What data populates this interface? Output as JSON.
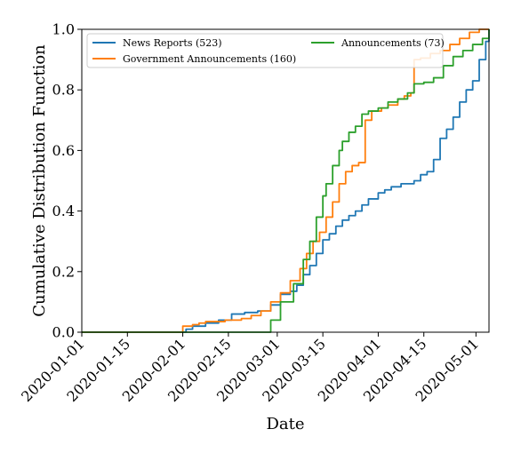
{
  "chart_data": {
    "type": "line",
    "title": "",
    "xlabel": "Date",
    "ylabel": "Cumulative Distribution Function",
    "xlim": [
      "2020-01-01",
      "2020-05-05"
    ],
    "ylim": [
      0,
      1.0
    ],
    "x_ticks": [
      "2020-01-01",
      "2020-01-15",
      "2020-02-01",
      "2020-02-15",
      "2020-03-01",
      "2020-03-15",
      "2020-04-01",
      "2020-04-15",
      "2020-05-01"
    ],
    "y_ticks": [
      "0.0",
      "0.2",
      "0.4",
      "0.6",
      "0.8",
      "1.0"
    ],
    "grid": false,
    "legend_position": "top",
    "series": [
      {
        "name": "News Reports (523)",
        "color": "#1f77b4",
        "x": [
          "2020-01-01",
          "2020-01-27",
          "2020-02-02",
          "2020-02-04",
          "2020-02-08",
          "2020-02-12",
          "2020-02-16",
          "2020-02-20",
          "2020-02-24",
          "2020-02-28",
          "2020-03-02",
          "2020-03-05",
          "2020-03-07",
          "2020-03-09",
          "2020-03-11",
          "2020-03-13",
          "2020-03-15",
          "2020-03-17",
          "2020-03-19",
          "2020-03-21",
          "2020-03-23",
          "2020-03-25",
          "2020-03-27",
          "2020-03-29",
          "2020-04-01",
          "2020-04-03",
          "2020-04-05",
          "2020-04-08",
          "2020-04-12",
          "2020-04-14",
          "2020-04-16",
          "2020-04-18",
          "2020-04-20",
          "2020-04-22",
          "2020-04-24",
          "2020-04-26",
          "2020-04-28",
          "2020-04-30",
          "2020-05-02",
          "2020-05-04",
          "2020-05-05"
        ],
        "values": [
          0.0,
          0.0,
          0.01,
          0.02,
          0.03,
          0.04,
          0.06,
          0.065,
          0.07,
          0.09,
          0.125,
          0.135,
          0.155,
          0.19,
          0.22,
          0.26,
          0.305,
          0.325,
          0.35,
          0.37,
          0.385,
          0.4,
          0.42,
          0.44,
          0.46,
          0.47,
          0.48,
          0.49,
          0.5,
          0.52,
          0.53,
          0.57,
          0.64,
          0.67,
          0.71,
          0.76,
          0.8,
          0.83,
          0.9,
          0.96,
          1.0
        ]
      },
      {
        "name": "Government Announcements (160)",
        "color": "#ff7f0e",
        "x": [
          "2020-01-01",
          "2020-01-31",
          "2020-02-01",
          "2020-02-04",
          "2020-02-06",
          "2020-02-08",
          "2020-02-14",
          "2020-02-19",
          "2020-02-22",
          "2020-02-25",
          "2020-02-28",
          "2020-03-02",
          "2020-03-05",
          "2020-03-08",
          "2020-03-10",
          "2020-03-12",
          "2020-03-14",
          "2020-03-16",
          "2020-03-18",
          "2020-03-20",
          "2020-03-22",
          "2020-03-24",
          "2020-03-26",
          "2020-03-28",
          "2020-03-30",
          "2020-04-01",
          "2020-04-02",
          "2020-04-04",
          "2020-04-07",
          "2020-04-09",
          "2020-04-11",
          "2020-04-12",
          "2020-04-14",
          "2020-04-17",
          "2020-04-20",
          "2020-04-23",
          "2020-04-26",
          "2020-04-29",
          "2020-05-02",
          "2020-05-05"
        ],
        "values": [
          0.0,
          0.0,
          0.02,
          0.025,
          0.03,
          0.035,
          0.04,
          0.045,
          0.055,
          0.07,
          0.1,
          0.13,
          0.17,
          0.21,
          0.26,
          0.3,
          0.33,
          0.38,
          0.43,
          0.49,
          0.53,
          0.55,
          0.56,
          0.7,
          0.73,
          0.73,
          0.74,
          0.75,
          0.77,
          0.78,
          0.79,
          0.9,
          0.905,
          0.92,
          0.93,
          0.95,
          0.97,
          0.99,
          1.0,
          1.0
        ]
      },
      {
        "name": "Announcements (73)",
        "color": "#2ca02c",
        "x": [
          "2020-01-01",
          "2020-02-25",
          "2020-02-28",
          "2020-03-02",
          "2020-03-06",
          "2020-03-09",
          "2020-03-11",
          "2020-03-13",
          "2020-03-15",
          "2020-03-16",
          "2020-03-18",
          "2020-03-20",
          "2020-03-21",
          "2020-03-23",
          "2020-03-25",
          "2020-03-27",
          "2020-03-29",
          "2020-04-01",
          "2020-04-04",
          "2020-04-07",
          "2020-04-10",
          "2020-04-12",
          "2020-04-15",
          "2020-04-18",
          "2020-04-21",
          "2020-04-24",
          "2020-04-27",
          "2020-04-30",
          "2020-05-03",
          "2020-05-05"
        ],
        "values": [
          0.0,
          0.0,
          0.04,
          0.1,
          0.16,
          0.24,
          0.3,
          0.38,
          0.45,
          0.49,
          0.55,
          0.6,
          0.63,
          0.66,
          0.68,
          0.72,
          0.73,
          0.74,
          0.76,
          0.77,
          0.79,
          0.82,
          0.825,
          0.84,
          0.88,
          0.91,
          0.93,
          0.95,
          0.97,
          1.0
        ]
      }
    ]
  }
}
